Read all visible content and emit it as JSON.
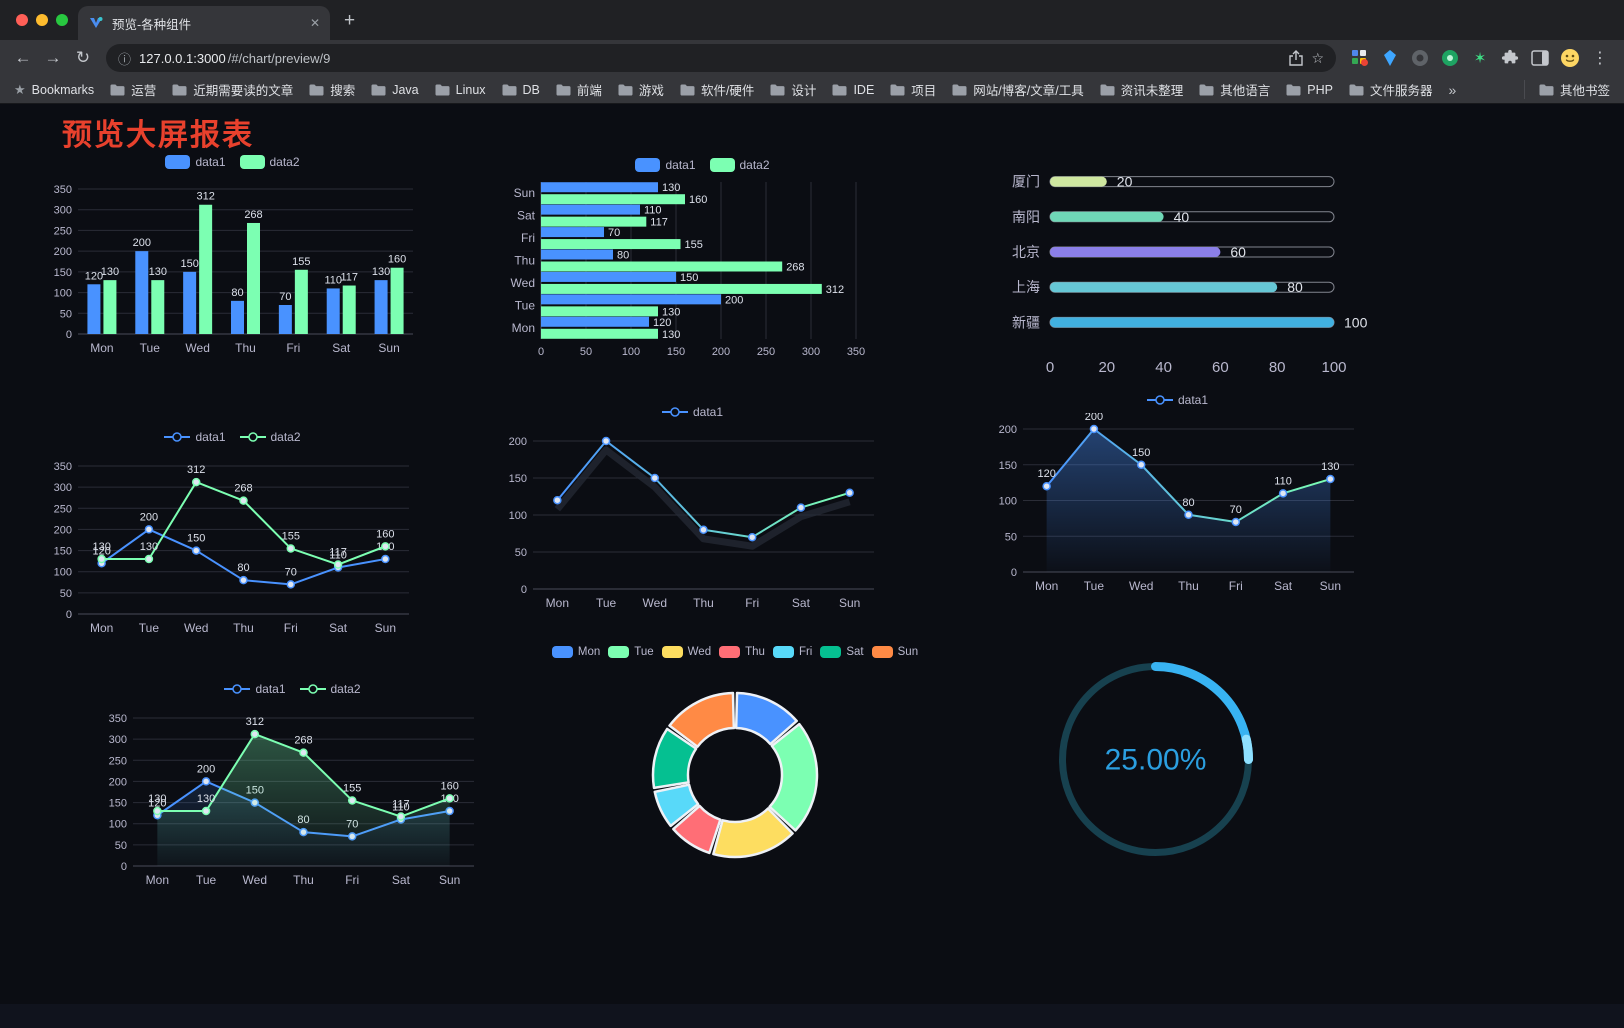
{
  "browser": {
    "tab": {
      "title": "预览-各种组件",
      "close_icon": "✕",
      "new_tab_icon": "+"
    },
    "toolbar": {
      "back_icon": "←",
      "forward_icon": "→",
      "reload_icon": "↻",
      "menu_icon": "⋮",
      "info_icon": "ⓘ",
      "bookmark_star_icon": "☆"
    },
    "address": {
      "host": "127.0.0.1:3000",
      "path": "/#/chart/preview/9"
    },
    "bookmarks_bar": {
      "bookmarks_label": "Bookmarks",
      "folders": [
        "运营",
        "近期需要读的文章",
        "搜索",
        "Java",
        "Linux",
        "DB",
        "前端",
        "游戏",
        "软件/硬件",
        "设计",
        "IDE",
        "项目",
        "网站/博客/文章/工具",
        "资讯未整理",
        "其他语言",
        "PHP",
        "文件服务器"
      ],
      "overflow_icon": "»",
      "other_bookmarks_label": "其他书签"
    }
  },
  "page": {
    "title": "预览大屏报表",
    "title_color": "#e8412d",
    "background": "#0b0d13"
  },
  "palette": {
    "text": "#b9b8ce",
    "grid": "#2b2d37",
    "axis": "#4a4c58",
    "value_label": "#dce0ea"
  },
  "chart_data": [
    {
      "type": "bar",
      "categories": [
        "Mon",
        "Tue",
        "Wed",
        "Thu",
        "Fri",
        "Sat",
        "Sun"
      ],
      "series": [
        {
          "name": "data1",
          "color": "#4992ff",
          "values": [
            120,
            200,
            150,
            80,
            70,
            110,
            130
          ]
        },
        {
          "name": "data2",
          "color": "#7cffb2",
          "values": [
            130,
            130,
            312,
            268,
            155,
            117,
            160
          ]
        }
      ],
      "ylim": [
        0,
        350
      ],
      "ytick_step": 50,
      "show_values": true,
      "legend_position": "top"
    },
    {
      "type": "hbar",
      "categories": [
        "Mon",
        "Tue",
        "Wed",
        "Thu",
        "Fri",
        "Sat",
        "Sun"
      ],
      "series": [
        {
          "name": "data1",
          "color": "#4992ff",
          "values": [
            120,
            200,
            150,
            80,
            70,
            110,
            130
          ]
        },
        {
          "name": "data2",
          "color": "#7cffb2",
          "values": [
            130,
            130,
            312,
            268,
            155,
            117,
            160
          ]
        }
      ],
      "xlim": [
        0,
        350
      ],
      "xtick_step": 50,
      "show_values": true,
      "legend_position": "top"
    },
    {
      "type": "progress",
      "categories": [
        "厦门",
        "南阳",
        "北京",
        "上海",
        "新疆"
      ],
      "values": [
        20,
        40,
        60,
        80,
        100
      ],
      "colors": [
        "#cfe7a0",
        "#6fd8b7",
        "#8b7fe8",
        "#66c7d6",
        "#41b0e0"
      ],
      "xlim": [
        0,
        100
      ],
      "xticks": [
        0,
        20,
        40,
        60,
        80,
        100
      ]
    },
    {
      "type": "line",
      "categories": [
        "Mon",
        "Tue",
        "Wed",
        "Thu",
        "Fri",
        "Sat",
        "Sun"
      ],
      "series": [
        {
          "name": "data1",
          "color": "#4992ff",
          "values": [
            120,
            200,
            150,
            80,
            70,
            110,
            130
          ],
          "labels": true
        },
        {
          "name": "data2",
          "color": "#7cffb2",
          "values": [
            130,
            130,
            312,
            268,
            155,
            117,
            160
          ],
          "labels": true
        }
      ],
      "ylim": [
        0,
        350
      ],
      "ytick_step": 50,
      "legend_position": "top"
    },
    {
      "type": "line",
      "categories": [
        "Mon",
        "Tue",
        "Wed",
        "Thu",
        "Fri",
        "Sat",
        "Sun"
      ],
      "series": [
        {
          "name": "data1",
          "color": "#4992ff",
          "color2": "#7cffb2",
          "gradient": true,
          "ghost": true,
          "values": [
            120,
            200,
            150,
            80,
            70,
            110,
            130
          ],
          "labels": false
        }
      ],
      "ylim": [
        0,
        200
      ],
      "ytick_step": 50,
      "legend_position": "top"
    },
    {
      "type": "line",
      "categories": [
        "Mon",
        "Tue",
        "Wed",
        "Thu",
        "Fri",
        "Sat",
        "Sun"
      ],
      "series": [
        {
          "name": "data1",
          "color": "#4992ff",
          "color2": "#7cffb2",
          "gradient": true,
          "area": true,
          "area_opacity": 0.4,
          "values": [
            120,
            200,
            150,
            80,
            70,
            110,
            130
          ],
          "labels": true
        }
      ],
      "ylim": [
        0,
        200
      ],
      "ytick_step": 50,
      "legend_position": "top"
    },
    {
      "type": "line",
      "categories": [
        "Mon",
        "Tue",
        "Wed",
        "Thu",
        "Fri",
        "Sat",
        "Sun"
      ],
      "series": [
        {
          "name": "data1",
          "color": "#4992ff",
          "area": true,
          "area_opacity": 0.15,
          "values": [
            120,
            200,
            150,
            80,
            70,
            110,
            130
          ],
          "labels": true
        },
        {
          "name": "data2",
          "color": "#7cffb2",
          "area": true,
          "area_opacity": 0.3,
          "values": [
            130,
            130,
            312,
            268,
            155,
            117,
            160
          ],
          "labels": true
        }
      ],
      "ylim": [
        0,
        350
      ],
      "ytick_step": 50,
      "legend_position": "top"
    },
    {
      "type": "pie",
      "labels": [
        "Mon",
        "Tue",
        "Wed",
        "Thu",
        "Fri",
        "Sat",
        "Sun"
      ],
      "values": [
        120,
        200,
        150,
        80,
        70,
        110,
        130
      ],
      "colors": [
        "#4992ff",
        "#7cffb2",
        "#fddd60",
        "#ff6e76",
        "#58d9f9",
        "#05c091",
        "#ff8a45"
      ],
      "legend_position": "top"
    },
    {
      "type": "gauge",
      "value": 25,
      "display": "25.00%",
      "color": "#38b3f2",
      "tip_color": "#8fe0ff",
      "track_color": "#17414f",
      "text_color": "#2b9fe0"
    }
  ]
}
